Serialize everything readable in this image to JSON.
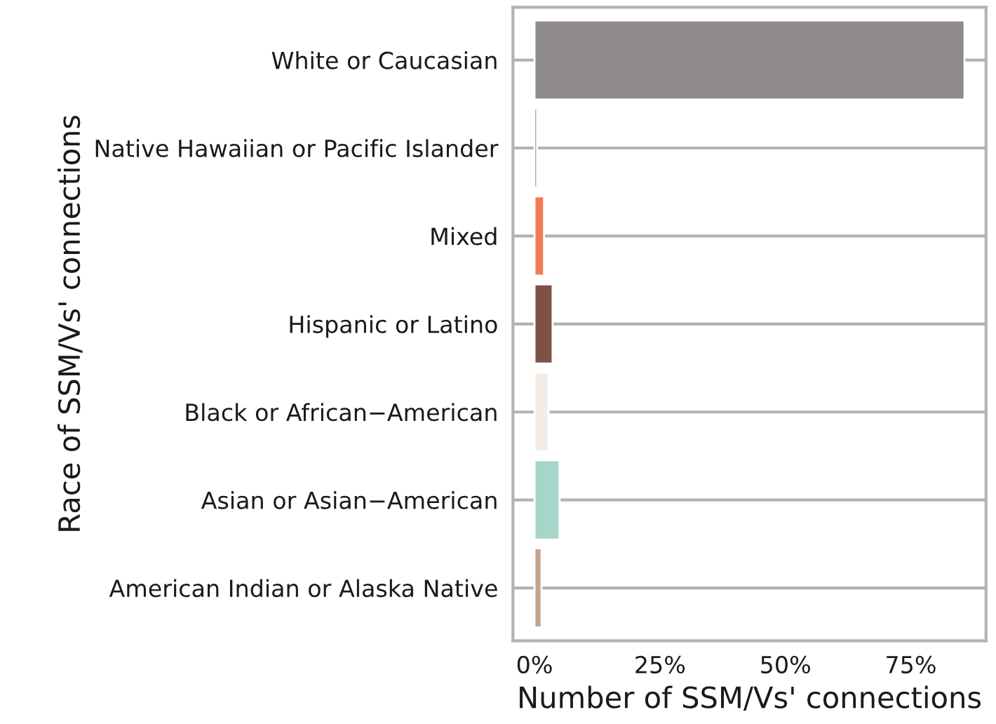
{
  "chart_data": {
    "type": "bar",
    "orientation": "horizontal",
    "xlabel": "Number of SSM/Vs' connections",
    "ylabel": "Race of SSM/Vs' connections",
    "categories": [
      "White or Caucasian",
      "Native Hawaiian or Pacific Islander",
      "Mixed",
      "Hispanic or Latino",
      "Black or African−American",
      "Asian or Asian−American",
      "American Indian or Alaska Native"
    ],
    "values": [
      85.7,
      0.5,
      1.9,
      3.6,
      2.8,
      5.0,
      1.4
    ],
    "colors": [
      "#8f8a8b",
      "#4f7f94",
      "#f37b58",
      "#7f5246",
      "#f4ece6",
      "#a6d5c9",
      "#c4a28e"
    ],
    "xlim": [
      -4.3,
      90
    ],
    "xticks": [
      {
        "value": 0,
        "label": "0%"
      },
      {
        "value": 25,
        "label": "25%"
      },
      {
        "value": 50,
        "label": "50%"
      },
      {
        "value": 75,
        "label": "75%"
      }
    ],
    "grid": "y",
    "legend": false
  }
}
